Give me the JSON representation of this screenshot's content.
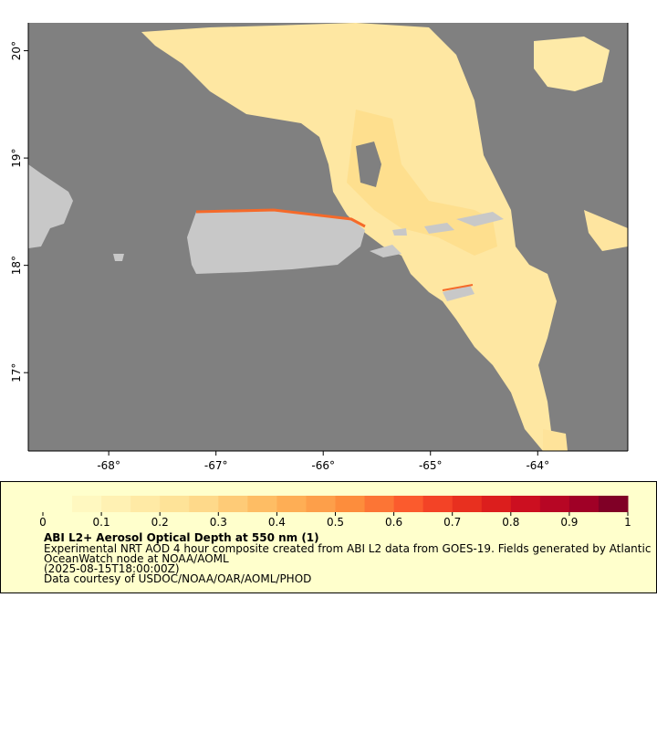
{
  "chart_data": {
    "type": "map",
    "title": "ABI L2+ Aerosol Optical Depth at 550 nm (1)",
    "description_lines": [
      "Experimental NRT AOD 4 hour composite created from ABI L2 data from GOES-19. Fields generated by Atlantic",
      "OceanWatch node at NOAA/AOML",
      "(2025-08-15T18:00:00Z)",
      "Data courtesy of USDOC/NOAA/OAR/AOML/PHOD"
    ],
    "xlim": [
      -68.75,
      -63.16
    ],
    "ylim": [
      16.27,
      20.26
    ],
    "xticks": [
      {
        "value": -68,
        "label": "-68°"
      },
      {
        "value": -67,
        "label": "-67°"
      },
      {
        "value": -66,
        "label": "-66°"
      },
      {
        "value": -65,
        "label": "-65°"
      },
      {
        "value": -64,
        "label": "-64°"
      }
    ],
    "yticks": [
      {
        "value": 17,
        "label": "17°"
      },
      {
        "value": 18,
        "label": "18°"
      },
      {
        "value": 19,
        "label": "19°"
      },
      {
        "value": 20,
        "label": "20°"
      }
    ],
    "colorbar": {
      "range": [
        0,
        1
      ],
      "ticks": [
        0,
        0.1,
        0.2,
        0.3,
        0.4,
        0.5,
        0.6,
        0.7,
        0.8,
        0.9,
        1
      ],
      "colors": [
        "#ffffcc",
        "#fff8c0",
        "#fff1b3",
        "#ffeaa5",
        "#fee398",
        "#fed98a",
        "#fecb77",
        "#febd64",
        "#feae55",
        "#fd9f4a",
        "#fd8d3c",
        "#fc7535",
        "#fb5b2d",
        "#f34326",
        "#e8301f",
        "#dc1e1d",
        "#cc0f20",
        "#b70624",
        "#a00026",
        "#800026"
      ]
    }
  }
}
